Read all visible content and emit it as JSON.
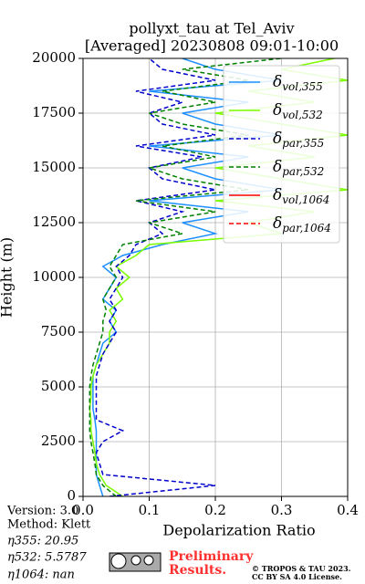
{
  "chart_data": {
    "type": "profile",
    "title": "pollyxt_tau at Tel_Aviv",
    "subtitle": "[Averaged] 20230808 09:01-10:00",
    "xlabel": "Depolarization Ratio",
    "ylabel": "Height (m)",
    "xlim": [
      0,
      0.4
    ],
    "xticks": [
      {
        "value": 0,
        "label": "0.0"
      },
      0.1,
      0.2,
      0.3,
      0.4
    ],
    "ylim": [
      0,
      20000
    ],
    "yticks": [
      0,
      2500,
      5000,
      7500,
      10000,
      12500,
      15000,
      17500,
      20000
    ],
    "grid": true,
    "legend": "upper right",
    "y": [
      0,
      500,
      1000,
      1500,
      2000,
      2500,
      3000,
      3500,
      4000,
      4500,
      5000,
      5500,
      6000,
      6500,
      7000,
      7500,
      8000,
      8500,
      9000,
      9500,
      10000,
      10500,
      11000,
      11500,
      12000,
      12500,
      13000,
      13500,
      14000,
      14500,
      15000,
      15500,
      16000,
      16500,
      17000,
      17500,
      18000,
      18500,
      19000,
      19500,
      20000
    ],
    "series": [
      {
        "name": "δvol,355",
        "color": "#1e90ff",
        "dash": false,
        "values": [
          0.03,
          0.025,
          0.02,
          0.02,
          0.02,
          0.02,
          0.02,
          0.018,
          0.015,
          0.015,
          0.015,
          0.015,
          0.02,
          0.025,
          0.03,
          0.05,
          0.04,
          0.05,
          0.03,
          0.04,
          0.05,
          0.03,
          0.06,
          0.12,
          0.2,
          0.15,
          0.25,
          0.1,
          0.3,
          0.2,
          0.15,
          0.25,
          0.1,
          0.3,
          0.2,
          0.15,
          0.25,
          0.1,
          0.3,
          0.2,
          0.15
        ]
      },
      {
        "name": "δvol,532",
        "color": "#7cfc00",
        "dash": false,
        "values": [
          0.06,
          0.035,
          0.025,
          0.02,
          0.018,
          0.015,
          0.012,
          0.012,
          0.01,
          0.012,
          0.012,
          0.015,
          0.02,
          0.03,
          0.04,
          0.04,
          0.05,
          0.04,
          0.06,
          0.05,
          0.07,
          0.05,
          0.08,
          0.1,
          0.3,
          0.25,
          0.35,
          0.2,
          0.4,
          0.3,
          0.2,
          0.35,
          0.25,
          0.4,
          0.3,
          0.2,
          0.35,
          0.25,
          0.4,
          0.3,
          0.38
        ]
      },
      {
        "name": "δpar,355",
        "color": "#0000cd",
        "dash": true,
        "values": [
          0.04,
          0.2,
          0.03,
          0.025,
          0.02,
          0.03,
          0.06,
          0.02,
          0.02,
          0.02,
          0.02,
          0.02,
          0.025,
          0.03,
          0.04,
          0.05,
          0.04,
          0.05,
          0.04,
          0.05,
          0.06,
          0.05,
          0.07,
          0.08,
          0.12,
          0.1,
          0.15,
          0.08,
          0.2,
          0.12,
          0.1,
          0.18,
          0.08,
          0.2,
          0.12,
          0.1,
          0.15,
          0.08,
          0.2,
          0.12,
          0.1
        ]
      },
      {
        "name": "δpar,532",
        "color": "#008000",
        "dash": true,
        "values": [
          0.05,
          0.03,
          0.02,
          0.018,
          0.015,
          0.012,
          0.01,
          0.01,
          0.01,
          0.01,
          0.01,
          0.012,
          0.015,
          0.02,
          0.025,
          0.03,
          0.03,
          0.035,
          0.03,
          0.04,
          0.05,
          0.04,
          0.05,
          0.06,
          0.15,
          0.1,
          0.2,
          0.08,
          0.25,
          0.15,
          0.1,
          0.2,
          0.12,
          0.25,
          0.15,
          0.1,
          0.2,
          0.12,
          0.25,
          0.15,
          0.3
        ]
      },
      {
        "name": "δvol,1064",
        "color": "#ff0000",
        "dash": false,
        "values": [
          null,
          null,
          null,
          null,
          null,
          null,
          null,
          null,
          null,
          null,
          null,
          null,
          null,
          null,
          null,
          null,
          null,
          null,
          null,
          null,
          null,
          null,
          null,
          null,
          null,
          null,
          null,
          null,
          null,
          null,
          null,
          null,
          null,
          null,
          null,
          null,
          null,
          null,
          null,
          null,
          null
        ]
      },
      {
        "name": "δpar,1064",
        "color": "#ff0000",
        "dash": true,
        "values": [
          null,
          null,
          null,
          null,
          null,
          null,
          null,
          null,
          null,
          null,
          null,
          null,
          null,
          null,
          null,
          null,
          null,
          null,
          null,
          null,
          null,
          null,
          null,
          null,
          null,
          null,
          null,
          null,
          null,
          null,
          null,
          null,
          null,
          null,
          null,
          null,
          null,
          null,
          null,
          null,
          null
        ]
      }
    ]
  },
  "info": {
    "version": "Version: 3.0",
    "method": "Method: Klett",
    "eta355": "η355:  20.95",
    "eta532": "η532: 5.5787",
    "eta1064": "η1064:    nan"
  },
  "footer": {
    "preliminary": "Preliminary",
    "results": "Results.",
    "copyright": "© TROPOS & TAU 2023.",
    "license": "CC BY SA 4.0 License."
  }
}
